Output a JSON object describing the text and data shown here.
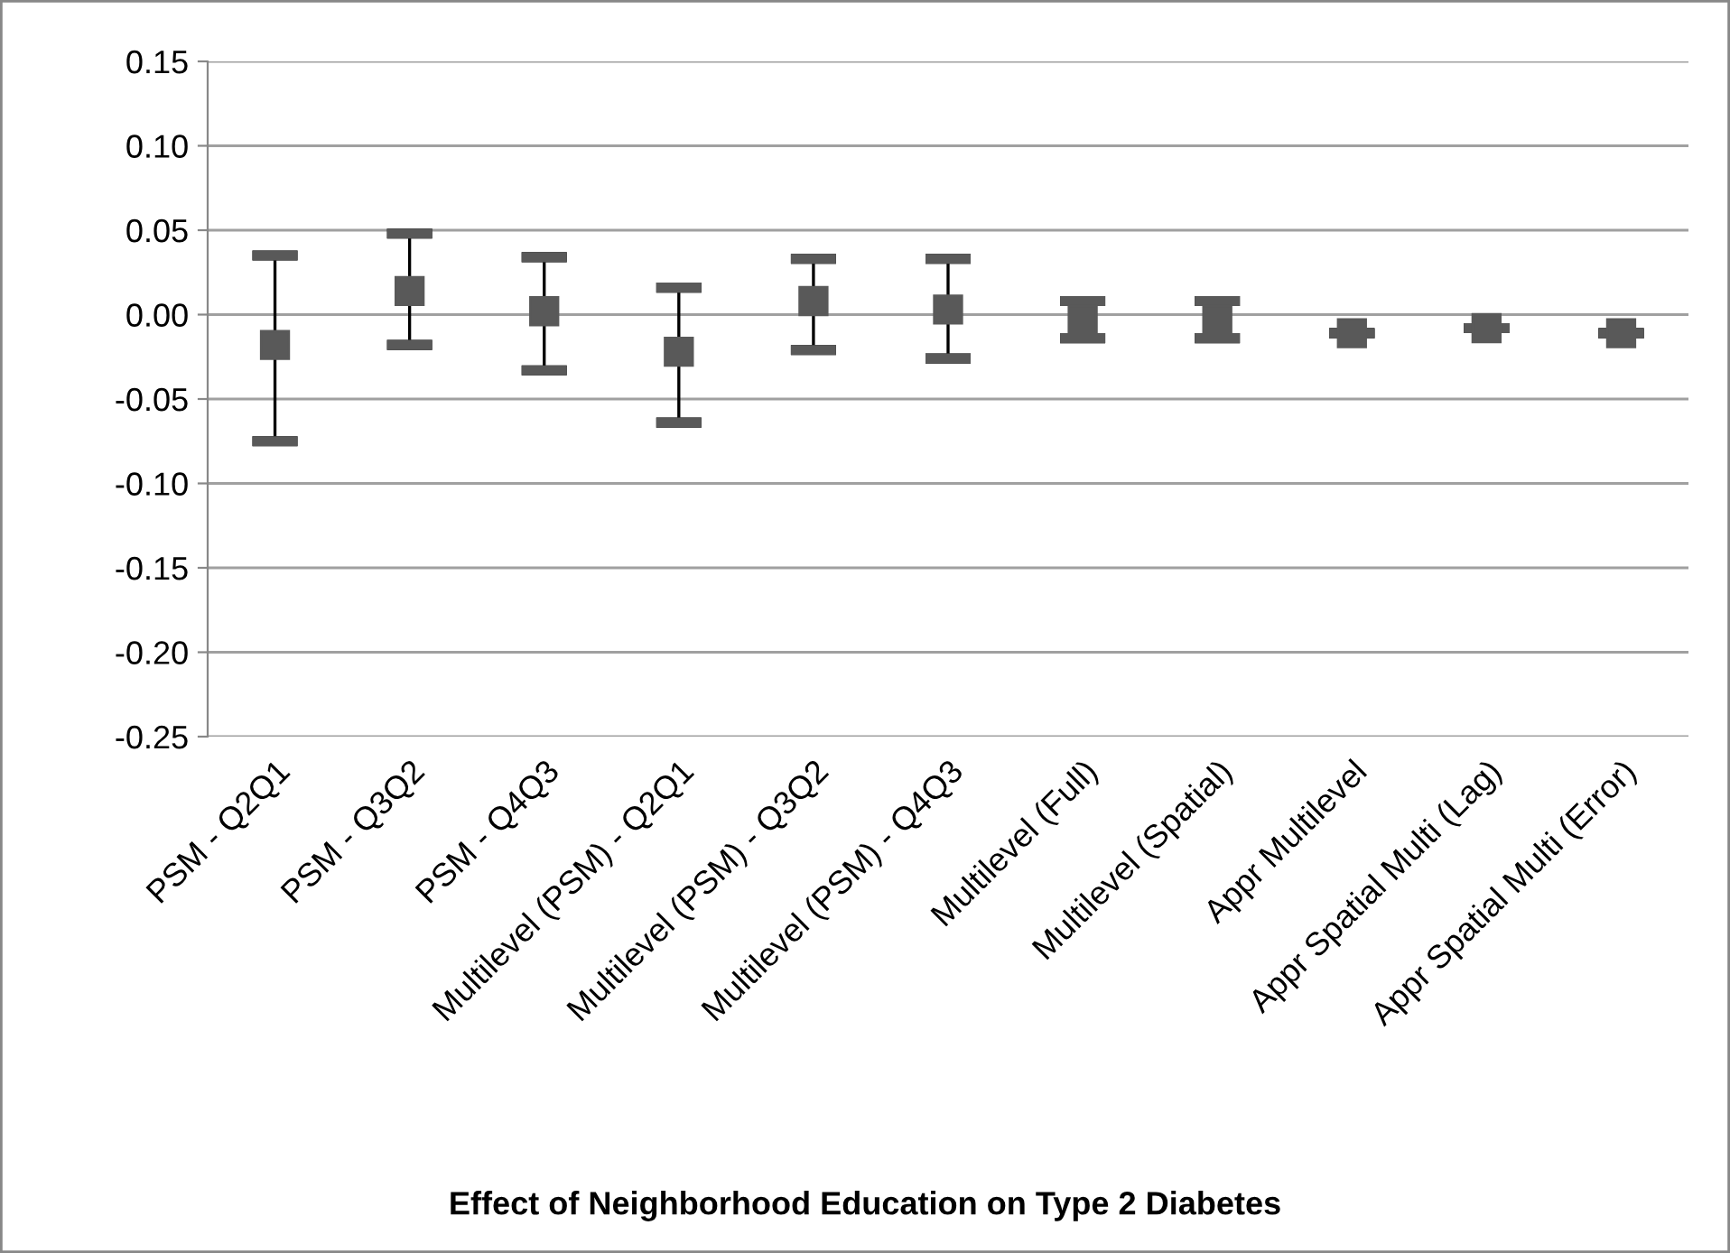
{
  "chart_data": {
    "type": "scatter",
    "annotations": [
      "Effect of Neighborhood Education on Type 2 Diabetes"
    ],
    "categories": [
      "PSM - Q2Q1",
      "PSM - Q3Q2",
      "PSM - Q4Q3",
      "Multilevel (PSM) - Q2Q1",
      "Multilevel (PSM) - Q3Q2",
      "Multilevel (PSM) - Q4Q3",
      "Multilevel (Full)",
      "Multilevel (Spatial)",
      "Appr Multilevel",
      "Appr Spatial Multi (Lag)",
      "Appr Spatial Multi (Error)"
    ],
    "values": [
      -0.018,
      0.014,
      0.002,
      -0.022,
      0.008,
      0.003,
      -0.003,
      -0.003,
      -0.011,
      -0.008,
      -0.011
    ],
    "errors": [
      [
        -0.075,
        0.035
      ],
      [
        -0.018,
        0.048
      ],
      [
        -0.033,
        0.034
      ],
      [
        -0.064,
        0.016
      ],
      [
        -0.021,
        0.033
      ],
      [
        -0.026,
        0.033
      ],
      [
        -0.014,
        0.008
      ],
      [
        -0.014,
        0.008
      ],
      null,
      null,
      null
    ],
    "color": "#595959",
    "marker": "square",
    "ylim": [
      -0.25,
      0.15
    ],
    "yticks": [
      {
        "value": -0.25,
        "label": "-0.25"
      },
      {
        "value": -0.2,
        "label": "-0.20"
      },
      {
        "value": -0.15,
        "label": "-0.15"
      },
      {
        "value": -0.1,
        "label": "-0.10"
      },
      {
        "value": -0.05,
        "label": "-0.05"
      },
      {
        "value": 0,
        "label": "0.00"
      },
      {
        "value": 0.05,
        "label": "0.05"
      },
      {
        "value": 0.1,
        "label": "0.10"
      },
      {
        "value": 0.15,
        "label": "0.15"
      }
    ],
    "grid": "y"
  }
}
